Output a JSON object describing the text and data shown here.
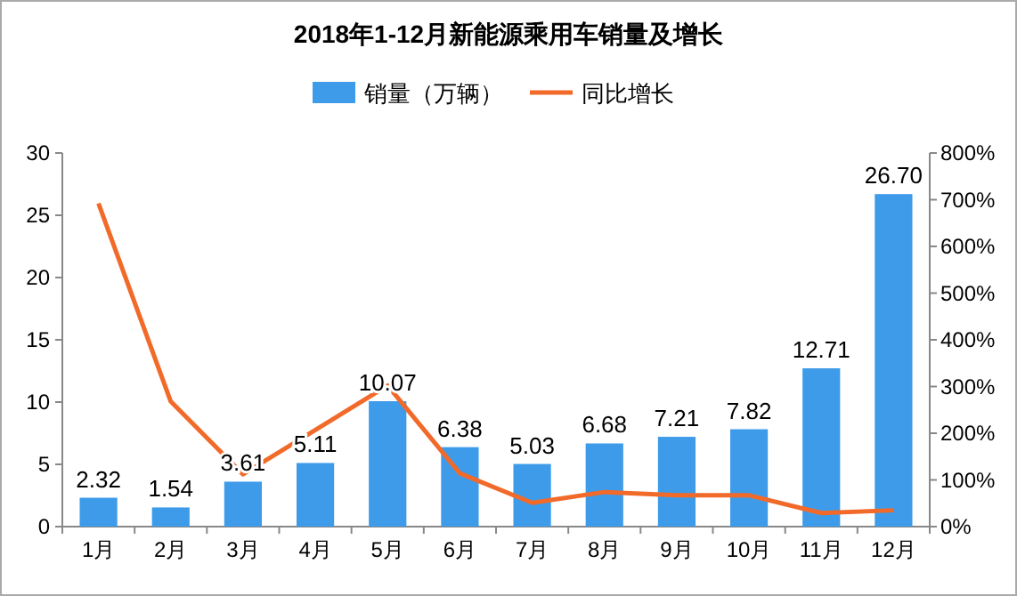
{
  "chart_data": {
    "type": "bar",
    "title": "2018年1-12月新能源乘用车销量及增长",
    "categories": [
      "1月",
      "2月",
      "3月",
      "4月",
      "5月",
      "6月",
      "7月",
      "8月",
      "9月",
      "10月",
      "11月",
      "12月"
    ],
    "series": [
      {
        "name": "销量（万辆）",
        "color": "#3d9be9",
        "values": [
          2.32,
          1.54,
          3.61,
          5.11,
          10.07,
          6.38,
          5.03,
          6.68,
          7.21,
          7.82,
          12.71,
          26.7
        ],
        "value_labels": [
          "2.32",
          "1.54",
          "3.61",
          "5.11",
          "10.07",
          "6.38",
          "5.03",
          "6.68",
          "7.21",
          "7.82",
          "12.71",
          "26.70"
        ]
      },
      {
        "name": "同比增长",
        "type": "line",
        "axis": "y2",
        "color": "#f26a2a",
        "values": [
          692,
          268,
          112,
          207,
          302,
          114,
          51,
          74,
          67,
          67,
          29,
          35
        ]
      }
    ],
    "ylim": [
      0,
      30
    ],
    "yticks": [
      0,
      5,
      10,
      15,
      20,
      25,
      30
    ],
    "y2lim": [
      0,
      800
    ],
    "y2ticks": [
      {
        "value": 0,
        "label": "0%"
      },
      {
        "value": 100,
        "label": "100%"
      },
      {
        "value": 200,
        "label": "200%"
      },
      {
        "value": 300,
        "label": "300%"
      },
      {
        "value": 400,
        "label": "400%"
      },
      {
        "value": 500,
        "label": "500%"
      },
      {
        "value": 600,
        "label": "600%"
      },
      {
        "value": 700,
        "label": "700%"
      },
      {
        "value": 800,
        "label": "800%"
      }
    ],
    "legend": "top",
    "marker": "none",
    "line_style": "solid"
  }
}
